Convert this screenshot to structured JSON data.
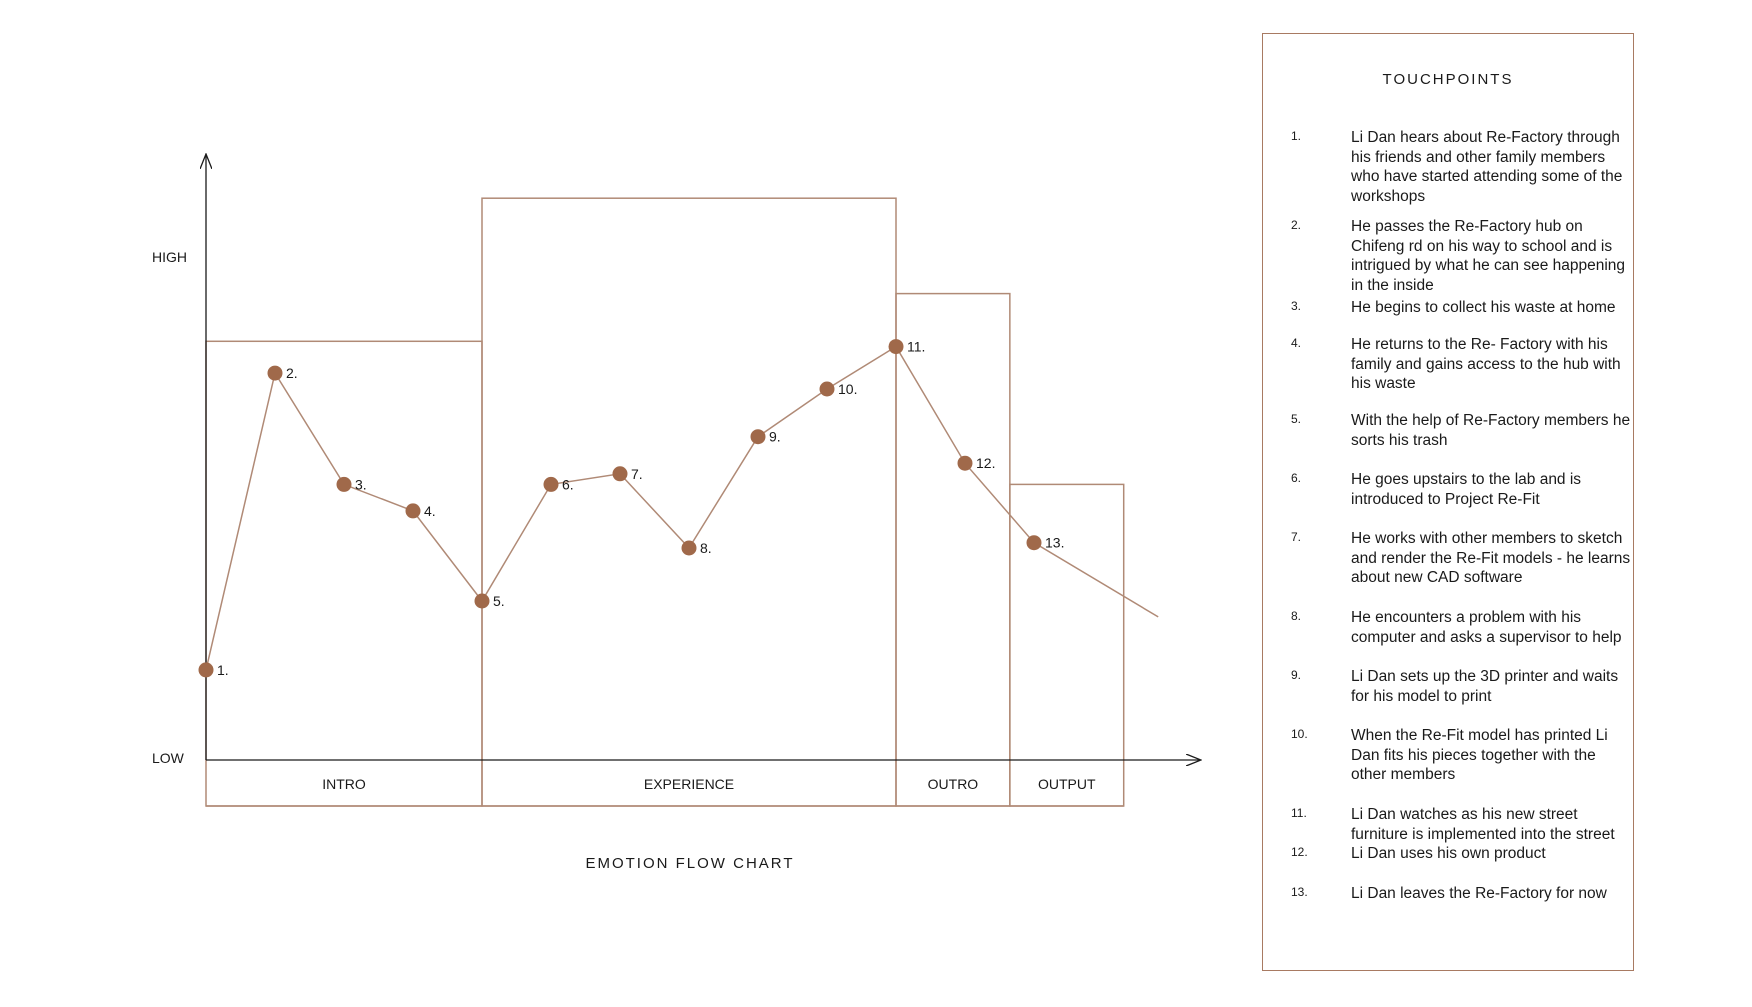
{
  "colors": {
    "line": "#b08a76",
    "marker": "#a0694a",
    "axis": "#1a1a1a"
  },
  "chart_data": {
    "type": "line",
    "title": "EMOTION FLOW CHART",
    "ylabel_high": "HIGH",
    "ylabel_low": "LOW",
    "ylim": [
      0,
      100
    ],
    "xlim": [
      0,
      14
    ],
    "points": [
      {
        "label": "1.",
        "x": 0,
        "y": 17
      },
      {
        "label": "2.",
        "x": 1,
        "y": 73
      },
      {
        "label": "3.",
        "x": 2,
        "y": 52
      },
      {
        "label": "4.",
        "x": 3,
        "y": 47
      },
      {
        "label": "5.",
        "x": 4,
        "y": 30
      },
      {
        "label": "6.",
        "x": 5,
        "y": 52
      },
      {
        "label": "7.",
        "x": 6,
        "y": 54
      },
      {
        "label": "8.",
        "x": 7,
        "y": 40
      },
      {
        "label": "9.",
        "x": 8,
        "y": 61
      },
      {
        "label": "10.",
        "x": 9,
        "y": 70
      },
      {
        "label": "11.",
        "x": 10,
        "y": 78
      },
      {
        "label": "12.",
        "x": 11,
        "y": 56
      },
      {
        "label": "13.",
        "x": 12,
        "y": 41
      }
    ],
    "trail_end": {
      "x": 13.8,
      "y": 27
    },
    "phases": [
      {
        "label": "INTRO",
        "x_start": 0,
        "x_end": 4,
        "y_top": 79
      },
      {
        "label": "EXPERIENCE",
        "x_start": 4,
        "x_end": 10,
        "y_top": 106
      },
      {
        "label": "OUTRO",
        "x_start": 10,
        "x_end": 11.65,
        "y_top": 88
      },
      {
        "label": "OUTPUT",
        "x_start": 11.65,
        "x_end": 13.3,
        "y_top": 52
      }
    ]
  },
  "touchpoints": {
    "title": "TOUCHPOINTS",
    "items": [
      {
        "num": "1.",
        "text": "Li Dan hears about Re-Factory through his friends and other family members who have started attending some of the workshops"
      },
      {
        "num": "2.",
        "text": "He passes the Re-Factory hub on Chifeng rd on his way to school and is intrigued by what he can see happening in the inside"
      },
      {
        "num": "3.",
        "text": "He begins to collect his waste at home"
      },
      {
        "num": "4.",
        "text": "He returns to the Re- Factory with his family and gains access to the hub with his waste"
      },
      {
        "num": "5.",
        "text": "With the help of Re-Factory members he sorts his trash"
      },
      {
        "num": "6.",
        "text": "He goes upstairs to the lab and is introduced to Project Re-Fit"
      },
      {
        "num": "7.",
        "text": "He works with other members to sketch and render the Re-Fit models - he learns about new CAD software"
      },
      {
        "num": "8.",
        "text": "He encounters a problem with his computer and asks a supervisor to help"
      },
      {
        "num": "9.",
        "text": "Li Dan sets up the 3D printer and waits for his model to print"
      },
      {
        "num": "10.",
        "text": "When the Re-Fit model has printed Li Dan fits his pieces together with the other members"
      },
      {
        "num": "11.",
        "text": "Li Dan watches as his new street furniture is implemented into the street"
      },
      {
        "num": "12.",
        "text": "Li Dan uses his own product"
      },
      {
        "num": "13.",
        "text": "Li Dan leaves the Re-Factory for now"
      }
    ]
  }
}
